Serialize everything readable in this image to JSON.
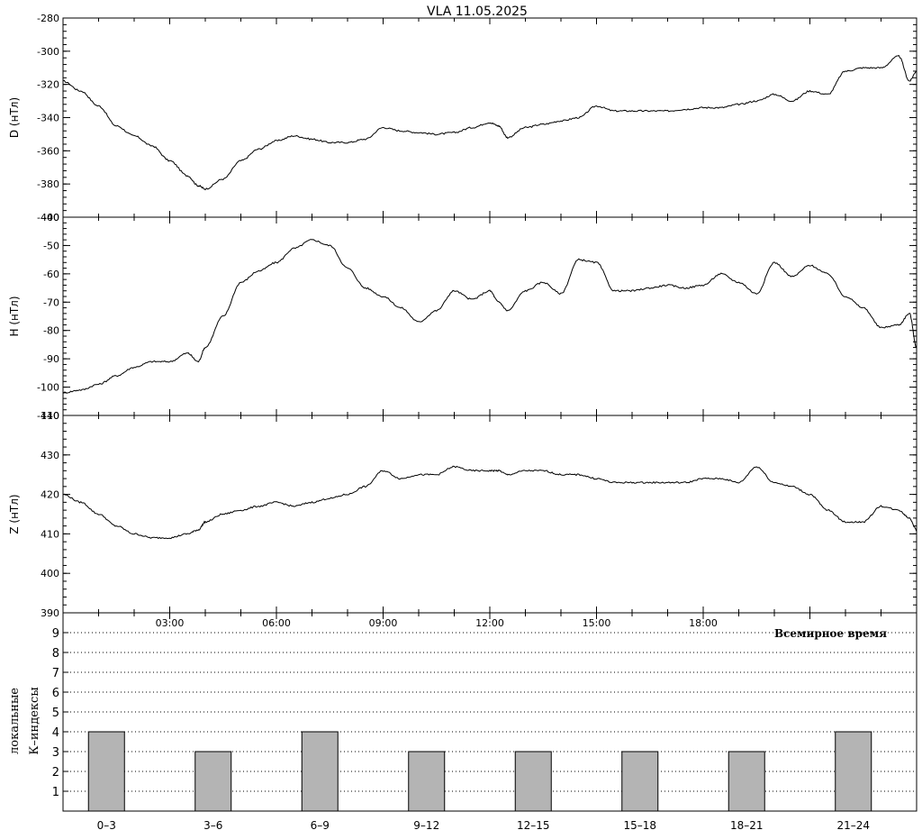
{
  "title": "VLA   11.05.2025",
  "x_axis_label": "Всемирное время",
  "x_tick_labels": [
    "03:00",
    "06:00",
    "09:00",
    "12:00",
    "15:00",
    "18:00"
  ],
  "chart_data": [
    {
      "type": "line",
      "ylabel": "D (нТл)",
      "ylim": [
        -400,
        -280
      ],
      "yticks": [
        -400,
        -380,
        -360,
        -340,
        -320,
        -300,
        -280
      ],
      "x": [
        0,
        0.5,
        1,
        1.5,
        2,
        2.5,
        3,
        3.5,
        3.8,
        4,
        4.5,
        5,
        5.5,
        6,
        6.5,
        7,
        7.5,
        8,
        8.5,
        9,
        9.5,
        10,
        10.5,
        11,
        11.5,
        12,
        12.25,
        12.5,
        13,
        13.5,
        14,
        14.5,
        15,
        15.5,
        16,
        16.5,
        17,
        17.5,
        18,
        18.5,
        19,
        19.5,
        20,
        20.5,
        21,
        21.5,
        22,
        22.5,
        23,
        23.5,
        23.8,
        24
      ],
      "values": [
        -318,
        -324,
        -333,
        -345,
        -351,
        -357,
        -366,
        -375,
        -381,
        -383,
        -377,
        -366,
        -359,
        -354,
        -351,
        -353,
        -355,
        -355,
        -353,
        -346,
        -348,
        -349,
        -350,
        -349,
        -346,
        -343,
        -345,
        -352,
        -346,
        -344,
        -342,
        -340,
        -333,
        -336,
        -336,
        -336,
        -336,
        -335,
        -334,
        -334,
        -332,
        -330,
        -326,
        -330,
        -324,
        -326,
        -312,
        -310,
        -310,
        -303,
        -318,
        -312
      ]
    },
    {
      "type": "line",
      "ylabel": "H (нТл)",
      "ylim": [
        -110,
        -40
      ],
      "yticks": [
        -110,
        -100,
        -90,
        -80,
        -70,
        -60,
        -50,
        -40
      ],
      "x": [
        0,
        0.5,
        1,
        1.5,
        2,
        2.5,
        3,
        3.5,
        3.8,
        4,
        4.5,
        5,
        5.5,
        6,
        6.5,
        7,
        7.5,
        8,
        8.5,
        9,
        9.5,
        10,
        10.5,
        11,
        11.5,
        12,
        12.25,
        12.5,
        13,
        13.5,
        14,
        14.5,
        15,
        15.5,
        16,
        16.5,
        17,
        17.5,
        18,
        18.5,
        19,
        19.5,
        20,
        20.5,
        21,
        21.5,
        22,
        22.5,
        23,
        23.5,
        23.8,
        24
      ],
      "values": [
        -102,
        -101,
        -99,
        -96,
        -93,
        -91,
        -91,
        -88,
        -91,
        -86,
        -75,
        -63,
        -59,
        -56,
        -51,
        -48,
        -50,
        -58,
        -65,
        -68,
        -72,
        -77,
        -73,
        -66,
        -69,
        -66,
        -70,
        -73,
        -66,
        -63,
        -67,
        -55,
        -56,
        -66,
        -66,
        -65,
        -64,
        -65,
        -64,
        -60,
        -63,
        -67,
        -56,
        -61,
        -57,
        -60,
        -68,
        -72,
        -79,
        -78,
        -74,
        -86
      ]
    },
    {
      "type": "line",
      "ylabel": "Z (нТл)",
      "ylim": [
        390,
        440
      ],
      "yticks": [
        390,
        400,
        410,
        420,
        430,
        440
      ],
      "x": [
        0,
        0.5,
        1,
        1.5,
        2,
        2.5,
        3,
        3.5,
        3.8,
        4,
        4.5,
        5,
        5.5,
        6,
        6.5,
        7,
        7.5,
        8,
        8.5,
        9,
        9.5,
        10,
        10.5,
        11,
        11.5,
        12,
        12.25,
        12.5,
        13,
        13.5,
        14,
        14.5,
        15,
        15.5,
        16,
        16.5,
        17,
        17.5,
        18,
        18.5,
        19,
        19.5,
        20,
        20.5,
        21,
        21.5,
        22,
        22.5,
        23,
        23.5,
        23.8,
        24
      ],
      "values": [
        420,
        418,
        415,
        412,
        410,
        409,
        409,
        410,
        411,
        413,
        415,
        416,
        417,
        418,
        417,
        418,
        419,
        420,
        422,
        426,
        424,
        425,
        425,
        427,
        426,
        426,
        426,
        425,
        426,
        426,
        425,
        425,
        424,
        423,
        423,
        423,
        423,
        423,
        424,
        424,
        423,
        427,
        423,
        422,
        420,
        416,
        413,
        413,
        417,
        416,
        414,
        411
      ]
    },
    {
      "type": "bar",
      "ylabel": [
        "локальные",
        "К–индексы"
      ],
      "categories": [
        "0–3",
        "3–6",
        "6–9",
        "9–12",
        "12–15",
        "15–18",
        "18–21",
        "21–24"
      ],
      "values": [
        4,
        3,
        4,
        3,
        3,
        3,
        3,
        4
      ],
      "ylim": [
        0,
        10
      ],
      "yticks": [
        1,
        2,
        3,
        4,
        5,
        6,
        7,
        8,
        9
      ],
      "grid": true,
      "bar_color": "#b4b4b4"
    }
  ]
}
